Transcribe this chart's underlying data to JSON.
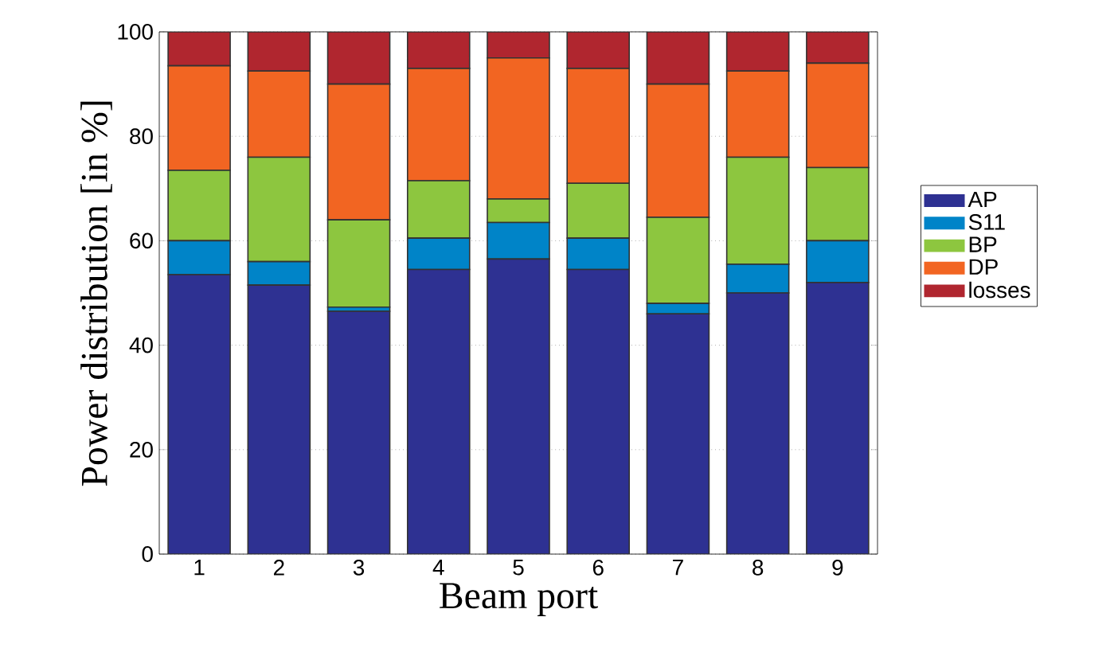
{
  "chart_data": {
    "type": "bar",
    "stacked": true,
    "xlabel": "Beam port",
    "ylabel": "Power distribution [in %]",
    "categories": [
      "1",
      "2",
      "3",
      "4",
      "5",
      "6",
      "7",
      "8",
      "9"
    ],
    "series": [
      {
        "name": "AP",
        "color": "#2e3192",
        "values": [
          53.5,
          51.5,
          46.5,
          54.5,
          56.5,
          54.5,
          46,
          50,
          52
        ]
      },
      {
        "name": "S11",
        "color": "#0084c8",
        "values": [
          6.5,
          4.5,
          0.8,
          6,
          7,
          6,
          2,
          5.5,
          8
        ]
      },
      {
        "name": "BP",
        "color": "#8dc63f",
        "values": [
          13.5,
          20,
          16.7,
          11,
          4.5,
          10.5,
          16.5,
          20.5,
          14
        ]
      },
      {
        "name": "DP",
        "color": "#f26522",
        "values": [
          20,
          16.5,
          26,
          21.5,
          27,
          22,
          25.5,
          16.5,
          20
        ]
      },
      {
        "name": "losses",
        "color": "#b0262f",
        "values": [
          6.5,
          7.5,
          10,
          7,
          5,
          7,
          10,
          7.5,
          6
        ]
      }
    ],
    "ylim": [
      0,
      100
    ],
    "yticks": [
      0,
      20,
      40,
      60,
      80,
      100
    ],
    "grid": "y",
    "legend": "right"
  }
}
